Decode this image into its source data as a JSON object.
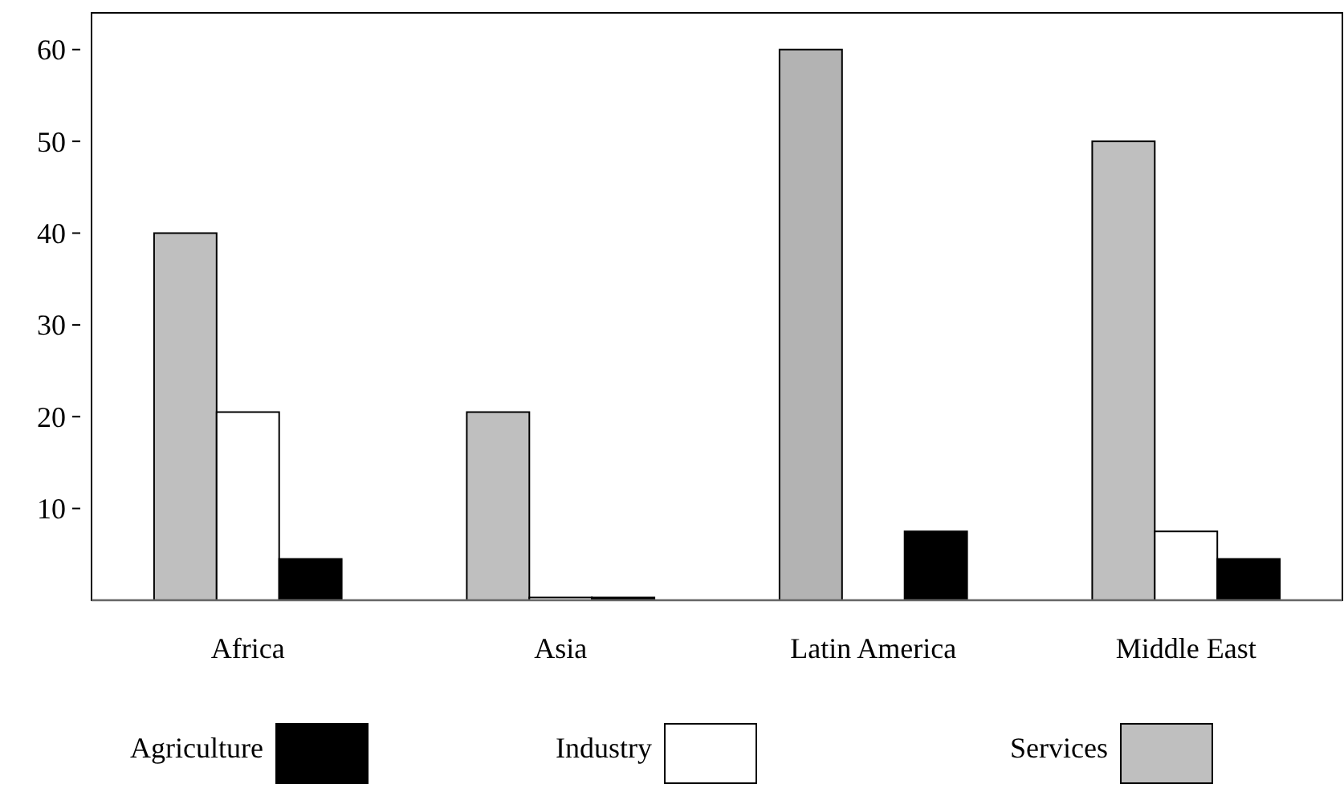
{
  "chart_data": {
    "type": "bar",
    "categories": [
      "Africa",
      "Asia",
      "Latin America",
      "Middle East"
    ],
    "series": [
      {
        "name": "Services",
        "color": "#bfbfbf",
        "colors": [
          "#bfbfbf",
          "#bfbfbf",
          "#b3b3b3",
          "#bfbfbf"
        ],
        "values": [
          40,
          20.5,
          60,
          50
        ]
      },
      {
        "name": "Industry",
        "color": "#ffffff",
        "values": [
          20.5,
          0.3,
          0,
          7.5
        ]
      },
      {
        "name": "Agriculture",
        "color": "#000000",
        "values": [
          4.5,
          0.3,
          7.5,
          4.5
        ]
      }
    ],
    "ylim": [
      0,
      64
    ],
    "yticks": [
      10,
      20,
      30,
      40,
      50,
      60
    ],
    "legend": "bottom"
  }
}
